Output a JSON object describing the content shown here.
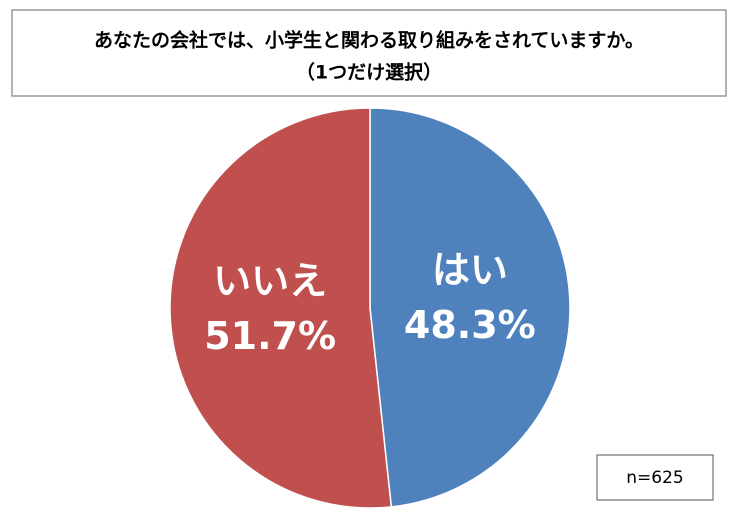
{
  "chart_data": {
    "type": "pie",
    "title": "あなたの会社では、小学生と関わる取り組みをされていますか。",
    "subtitle": "（1つだけ選択）",
    "categories": [
      "はい",
      "いいえ"
    ],
    "values": [
      48.3,
      51.7
    ],
    "value_labels": [
      "48.3%",
      "51.7%"
    ],
    "colors": [
      "#4f81bd",
      "#c0504d"
    ],
    "annotation": "n=625"
  }
}
